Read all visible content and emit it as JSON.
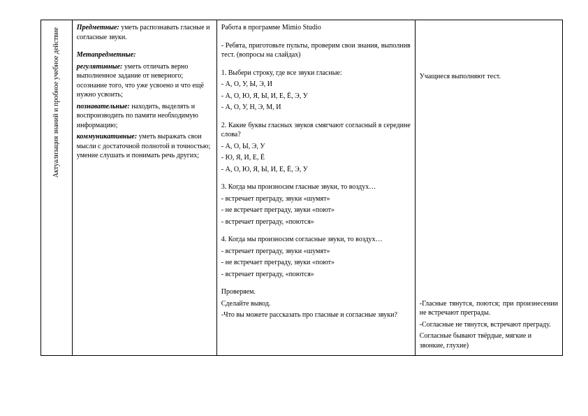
{
  "colors": {
    "background": "#ffffff",
    "text": "#000000",
    "border": "#000000"
  },
  "typography": {
    "font_family": "Times New Roman",
    "base_font_size_pt": 10
  },
  "stage_label": "Актуализация знаний и пробное учебное действие",
  "goals": {
    "predmet_label": "Предметные:",
    "predmet_text": " уметь распознавать гласные и согласные звуки.",
    "metapredmet_label": "Метапредметные:",
    "reg_label": "регулятивные:",
    "reg_text": " уметь отличать верно выполненное задание от неверного; осознание того, что уже усвоено и что ещё нужно усвоить;",
    "pozn_label": "познавательные:",
    "pozn_text": " находить, выделять и воспроизводить по памяти необходимую информацию;",
    "komm_label": "коммуникативные:",
    "komm_text": " уметь выражать свои мысли с достаточной полнотой и точностью; умение слушать и понимать речь других;"
  },
  "activity": {
    "title": "Работа в программе Mimio Studio",
    "intro": "- Ребята, приготовьте пульты, проверим свои знания, выполнив тест. (вопросы на слайдах)",
    "q1": "1. Выбери строку, где все звуки гласные:",
    "q1_o1": "- А, О, У, Ы, Э, И",
    "q1_o2": "- А, О, Ю, Я, Ы, И, Е, Ё, Э, У",
    "q1_o3": "- А, О, У, Н, Э, М, И",
    "q2": "2. Какие буквы гласных звуков смягчают согласный в середине слова?",
    "q2_o1": "- А, О, Ы, Э, У",
    "q2_o2": "- Ю, Я, И, Е, Ё",
    "q2_o3": "- А, О, Ю, Я, Ы, И, Е, Ё, Э, У",
    "q3": "3. Когда мы произносим гласные звуки, то воздух…",
    "q3_o1": "- встречает преграду, звуки «шумят»",
    "q3_o2": "- не встречает преграду, звуки «поют»",
    "q3_o3": "- встречает преграду, «поются»",
    "q4": "4. Когда мы произносим согласные звуки, то воздух…",
    "q4_o1": "- встречает преграду, звуки «шумят»",
    "q4_o2": "- не встречает преграду, звуки «поют»",
    "q4_o3": "- встречает преграду, «поются»",
    "check": "Проверяем.",
    "conclude": "Сделайте вывод.",
    "ask": "-Что вы можете рассказать про гласные и согласные звуки?"
  },
  "result": {
    "top": "Учащиеся выполняют тест.",
    "b1": "-Гласные тянутся, поются; при произнесении не встречают преграды.",
    "b2": "-Согласные не тянутся, встречают преграду.",
    "b3": "Согласные бывают твёрдые, мягкие и звонкие, глухие)"
  }
}
